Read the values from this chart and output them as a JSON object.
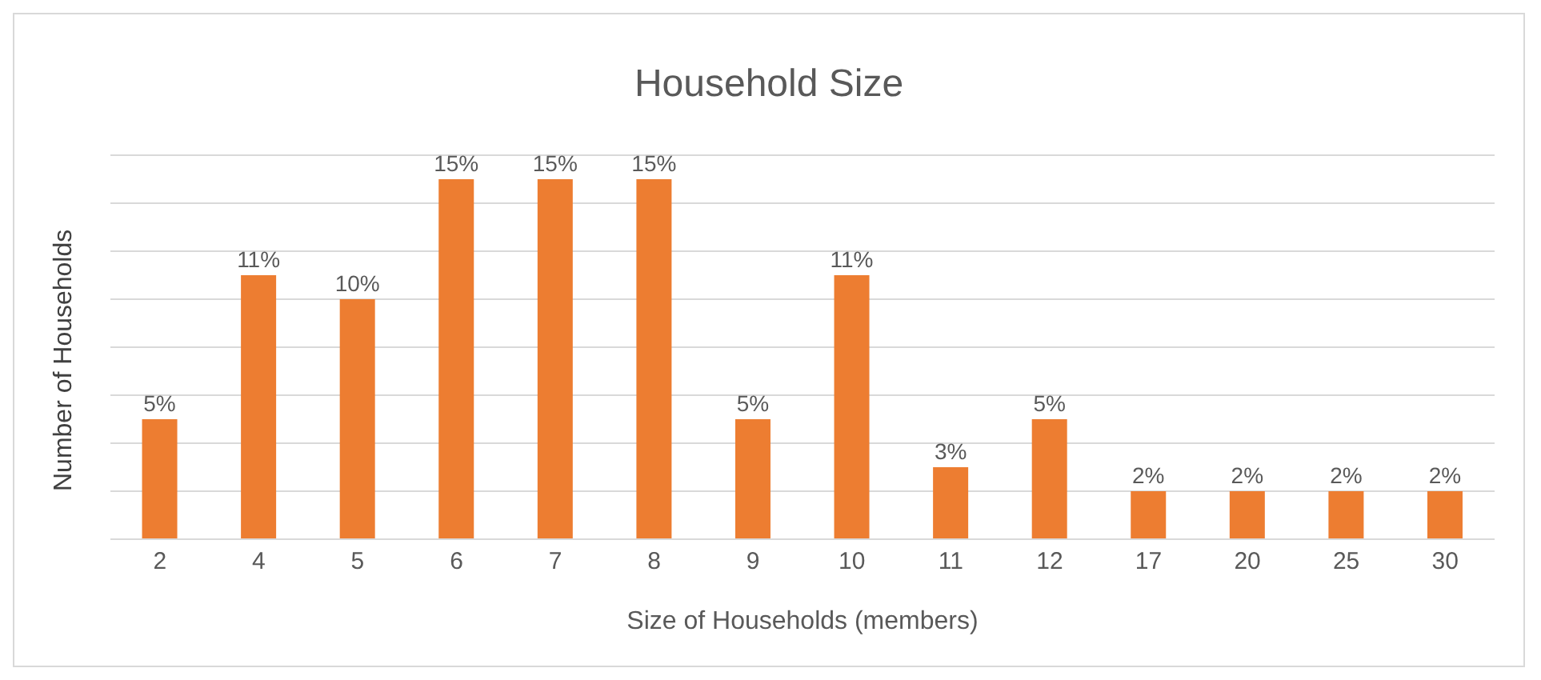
{
  "chart_data": {
    "type": "bar",
    "title": "Household Size",
    "xlabel": "Size of Households (members)",
    "ylabel": "Number of Households",
    "categories": [
      "2",
      "4",
      "5",
      "6",
      "7",
      "8",
      "9",
      "10",
      "11",
      "12",
      "17",
      "20",
      "25",
      "30"
    ],
    "values": [
      5,
      11,
      10,
      15,
      15,
      15,
      5,
      11,
      3,
      5,
      2,
      2,
      2,
      2
    ],
    "value_labels": [
      "5%",
      "11%",
      "10%",
      "15%",
      "15%",
      "15%",
      "5%",
      "11%",
      "3%",
      "5%",
      "2%",
      "2%",
      "2%",
      "2%"
    ],
    "color": "#ed7d31",
    "ylim": [
      0,
      16
    ],
    "yticks": [
      {
        "value": 0,
        "label": null
      },
      {
        "value": 2,
        "label": null
      },
      {
        "value": 4,
        "label": null
      },
      {
        "value": 6,
        "label": null
      },
      {
        "value": 8,
        "label": null
      },
      {
        "value": 10,
        "label": null
      },
      {
        "value": 12,
        "label": null
      },
      {
        "value": 14,
        "label": null
      },
      {
        "value": 16,
        "label": null
      }
    ],
    "tick_labels": "x",
    "grid": "y",
    "legend": false
  }
}
